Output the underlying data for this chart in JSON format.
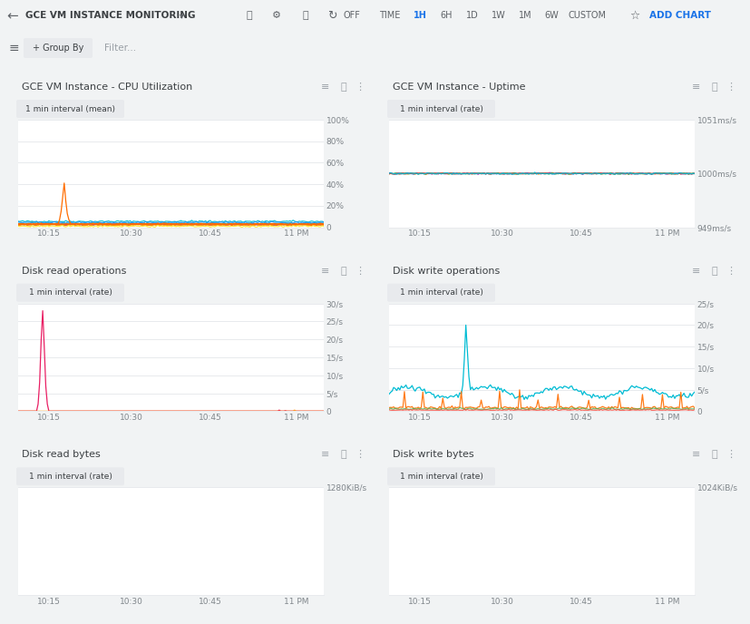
{
  "bg_color": "#f1f3f4",
  "card_color": "#ffffff",
  "header_bg": "#ffffff",
  "header_text": "GCE VM INSTANCE MONITORING",
  "header_text_color": "#3c4043",
  "add_chart_color": "#1a73e8",
  "active_color": "#1a73e8",
  "panel_titles": [
    "GCE VM Instance - CPU Utilization",
    "GCE VM Instance - Uptime",
    "Disk read operations",
    "Disk write operations",
    "Disk read bytes",
    "Disk write bytes"
  ],
  "panel_badges": [
    "1 min interval (mean)",
    "1 min interval (rate)",
    "1 min interval (rate)",
    "1 min interval (rate)",
    "1 min interval (rate)",
    "1 min interval (rate)"
  ],
  "panel_configs": [
    {
      "ylim": [
        0,
        100
      ],
      "yticks": [
        0,
        20,
        40,
        60,
        80,
        100
      ],
      "ytick_labels": [
        "0",
        "20%",
        "40%",
        "60%",
        "80%",
        "100%"
      ],
      "xtick_labels": [
        "10:15",
        "10:30",
        "10:45",
        "11 PM"
      ],
      "gridlines": [
        20,
        40,
        60,
        80,
        100
      ]
    },
    {
      "ylim": [
        949,
        1051
      ],
      "yticks": [
        949,
        1000,
        1051
      ],
      "ytick_labels": [
        "949ms/s",
        "1000ms/s",
        "1051ms/s"
      ],
      "xtick_labels": [
        "10:15",
        "10:30",
        "10:45",
        "11 PM"
      ],
      "gridlines": [
        949,
        1000,
        1051
      ]
    },
    {
      "ylim": [
        0,
        30
      ],
      "yticks": [
        0,
        5,
        10,
        15,
        20,
        25,
        30
      ],
      "ytick_labels": [
        "0",
        "5/s",
        "10/s",
        "15/s",
        "20/s",
        "25/s",
        "30/s"
      ],
      "xtick_labels": [
        "10:15",
        "10:30",
        "10:45",
        "11 PM"
      ],
      "gridlines": [
        5,
        10,
        15,
        20,
        25,
        30
      ]
    },
    {
      "ylim": [
        0,
        25
      ],
      "yticks": [
        0,
        5,
        10,
        15,
        20,
        25
      ],
      "ytick_labels": [
        "0",
        "5/s",
        "10/s",
        "15/s",
        "20/s",
        "25/s"
      ],
      "xtick_labels": [
        "10:15",
        "10:30",
        "10:45",
        "11 PM"
      ],
      "gridlines": [
        5,
        10,
        15,
        20,
        25
      ]
    },
    {
      "ylim": [
        0,
        1280
      ],
      "yticks": [
        1280
      ],
      "ytick_labels": [
        "1280KiB/s"
      ],
      "xtick_labels": [
        "10:15",
        "10:30",
        "10:45",
        "11 PM"
      ],
      "gridlines": [
        1280
      ]
    },
    {
      "ylim": [
        0,
        1024
      ],
      "yticks": [
        1024
      ],
      "ytick_labels": [
        "1024KiB/s"
      ],
      "xtick_labels": [
        "10:15",
        "10:30",
        "10:45",
        "11 PM"
      ],
      "gridlines": [
        1024
      ]
    }
  ]
}
